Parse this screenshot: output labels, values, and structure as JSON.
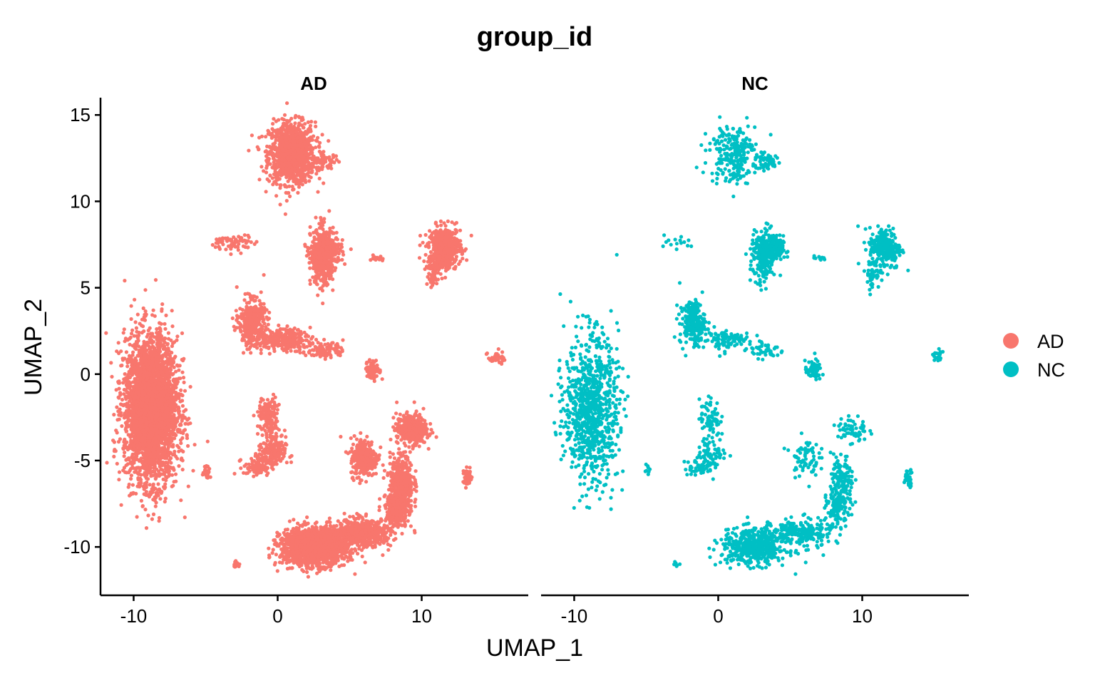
{
  "chart_data": {
    "type": "scatter",
    "title": "group_id",
    "xlabel": "UMAP_1",
    "ylabel": "UMAP_2",
    "xlim": [
      -12.3,
      17.4
    ],
    "ylim": [
      -12.8,
      16.0
    ],
    "x_ticks": [
      -10,
      0,
      10
    ],
    "x_tick_labels": [
      "-10",
      "0",
      "10"
    ],
    "y_ticks": [
      -10,
      -5,
      0,
      5,
      10,
      15
    ],
    "y_tick_labels": [
      "-10",
      "-5",
      "0",
      "5",
      "10",
      "15"
    ],
    "grid": false,
    "legend_position": "right",
    "facets": [
      "AD",
      "NC"
    ],
    "series": [
      {
        "name": "AD",
        "color": "#F8766D"
      },
      {
        "name": "NC",
        "color": "#00BFC4"
      }
    ],
    "clusters": [
      {
        "name": "top",
        "cx": 1.0,
        "cy": 12.8,
        "sx": 1.0,
        "sy": 1.1,
        "n_ad": 1100,
        "n_nc": 240
      },
      {
        "name": "top-tail",
        "cx": 3.3,
        "cy": 12.3,
        "sx": 0.6,
        "sy": 0.3,
        "n_ad": 60,
        "n_nc": 60
      },
      {
        "name": "left-large",
        "cx": -8.8,
        "cy": -2.0,
        "sx": 1.15,
        "sy": 2.6,
        "n_ad": 3200,
        "n_nc": 900
      },
      {
        "name": "left-small",
        "cx": -4.9,
        "cy": -5.6,
        "sx": 0.15,
        "sy": 0.25,
        "n_ad": 25,
        "n_nc": 8
      },
      {
        "name": "mid-upper-a",
        "cx": 3.1,
        "cy": 6.8,
        "sx": 0.5,
        "sy": 1.0,
        "n_ad": 500,
        "n_nc": 200
      },
      {
        "name": "mid-upper-b",
        "cx": 3.8,
        "cy": 7.2,
        "sx": 0.45,
        "sy": 0.5,
        "n_ad": 100,
        "n_nc": 140
      },
      {
        "name": "upper-right",
        "cx": 11.6,
        "cy": 7.3,
        "sx": 0.7,
        "sy": 0.75,
        "n_ad": 500,
        "n_nc": 260
      },
      {
        "name": "upper-right-tail",
        "cx": 10.7,
        "cy": 5.8,
        "sx": 0.3,
        "sy": 0.55,
        "n_ad": 60,
        "n_nc": 40
      },
      {
        "name": "left-upper-small",
        "cx": -3.0,
        "cy": 7.6,
        "sx": 0.9,
        "sy": 0.3,
        "n_ad": 70,
        "n_nc": 15
      },
      {
        "name": "small-mid",
        "cx": 7.0,
        "cy": 6.7,
        "sx": 0.3,
        "sy": 0.08,
        "n_ad": 25,
        "n_nc": 10
      },
      {
        "name": "mid-left-a",
        "cx": -1.8,
        "cy": 3.0,
        "sx": 0.55,
        "sy": 0.8,
        "n_ad": 400,
        "n_nc": 200
      },
      {
        "name": "mid-left-b",
        "cx": 0.3,
        "cy": 2.0,
        "sx": 1.2,
        "sy": 0.4,
        "n_ad": 250,
        "n_nc": 100
      },
      {
        "name": "mid-left-c",
        "cx": 3.3,
        "cy": 1.4,
        "sx": 0.8,
        "sy": 0.3,
        "n_ad": 100,
        "n_nc": 40
      },
      {
        "name": "far-right-small",
        "cx": 15.2,
        "cy": 1.0,
        "sx": 0.35,
        "sy": 0.3,
        "n_ad": 30,
        "n_nc": 20
      },
      {
        "name": "small-center",
        "cx": 6.6,
        "cy": 0.2,
        "sx": 0.35,
        "sy": 0.35,
        "n_ad": 70,
        "n_nc": 60
      },
      {
        "name": "c-shape-a",
        "cx": -0.6,
        "cy": -2.5,
        "sx": 0.45,
        "sy": 0.7,
        "n_ad": 150,
        "n_nc": 70
      },
      {
        "name": "c-shape-b",
        "cx": -0.4,
        "cy": -4.6,
        "sx": 0.6,
        "sy": 0.6,
        "n_ad": 160,
        "n_nc": 80
      },
      {
        "name": "c-shape-c",
        "cx": -1.4,
        "cy": -5.4,
        "sx": 0.6,
        "sy": 0.3,
        "n_ad": 80,
        "n_nc": 40
      },
      {
        "name": "mid-right-a",
        "cx": 6.0,
        "cy": -4.8,
        "sx": 0.6,
        "sy": 0.7,
        "n_ad": 300,
        "n_nc": 70
      },
      {
        "name": "loop-top",
        "cx": 9.3,
        "cy": -3.2,
        "sx": 0.65,
        "sy": 0.55,
        "n_ad": 400,
        "n_nc": 60
      },
      {
        "name": "loop-down",
        "cx": 8.6,
        "cy": -6.3,
        "sx": 0.5,
        "sy": 1.0,
        "n_ad": 400,
        "n_nc": 140
      },
      {
        "name": "bottom-big",
        "cx": 2.5,
        "cy": -10.0,
        "sx": 1.4,
        "sy": 0.65,
        "n_ad": 1600,
        "n_nc": 500
      },
      {
        "name": "bottom-mid",
        "cx": 5.8,
        "cy": -9.2,
        "sx": 1.3,
        "sy": 0.5,
        "n_ad": 600,
        "n_nc": 220
      },
      {
        "name": "bottom-rise",
        "cx": 8.3,
        "cy": -7.8,
        "sx": 0.5,
        "sy": 0.6,
        "n_ad": 250,
        "n_nc": 100
      },
      {
        "name": "right-small",
        "cx": 13.2,
        "cy": -6.0,
        "sx": 0.2,
        "sy": 0.3,
        "n_ad": 60,
        "n_nc": 35
      },
      {
        "name": "bottom-left-small",
        "cx": -2.9,
        "cy": -11.0,
        "sx": 0.15,
        "sy": 0.1,
        "n_ad": 20,
        "n_nc": 8
      }
    ]
  }
}
